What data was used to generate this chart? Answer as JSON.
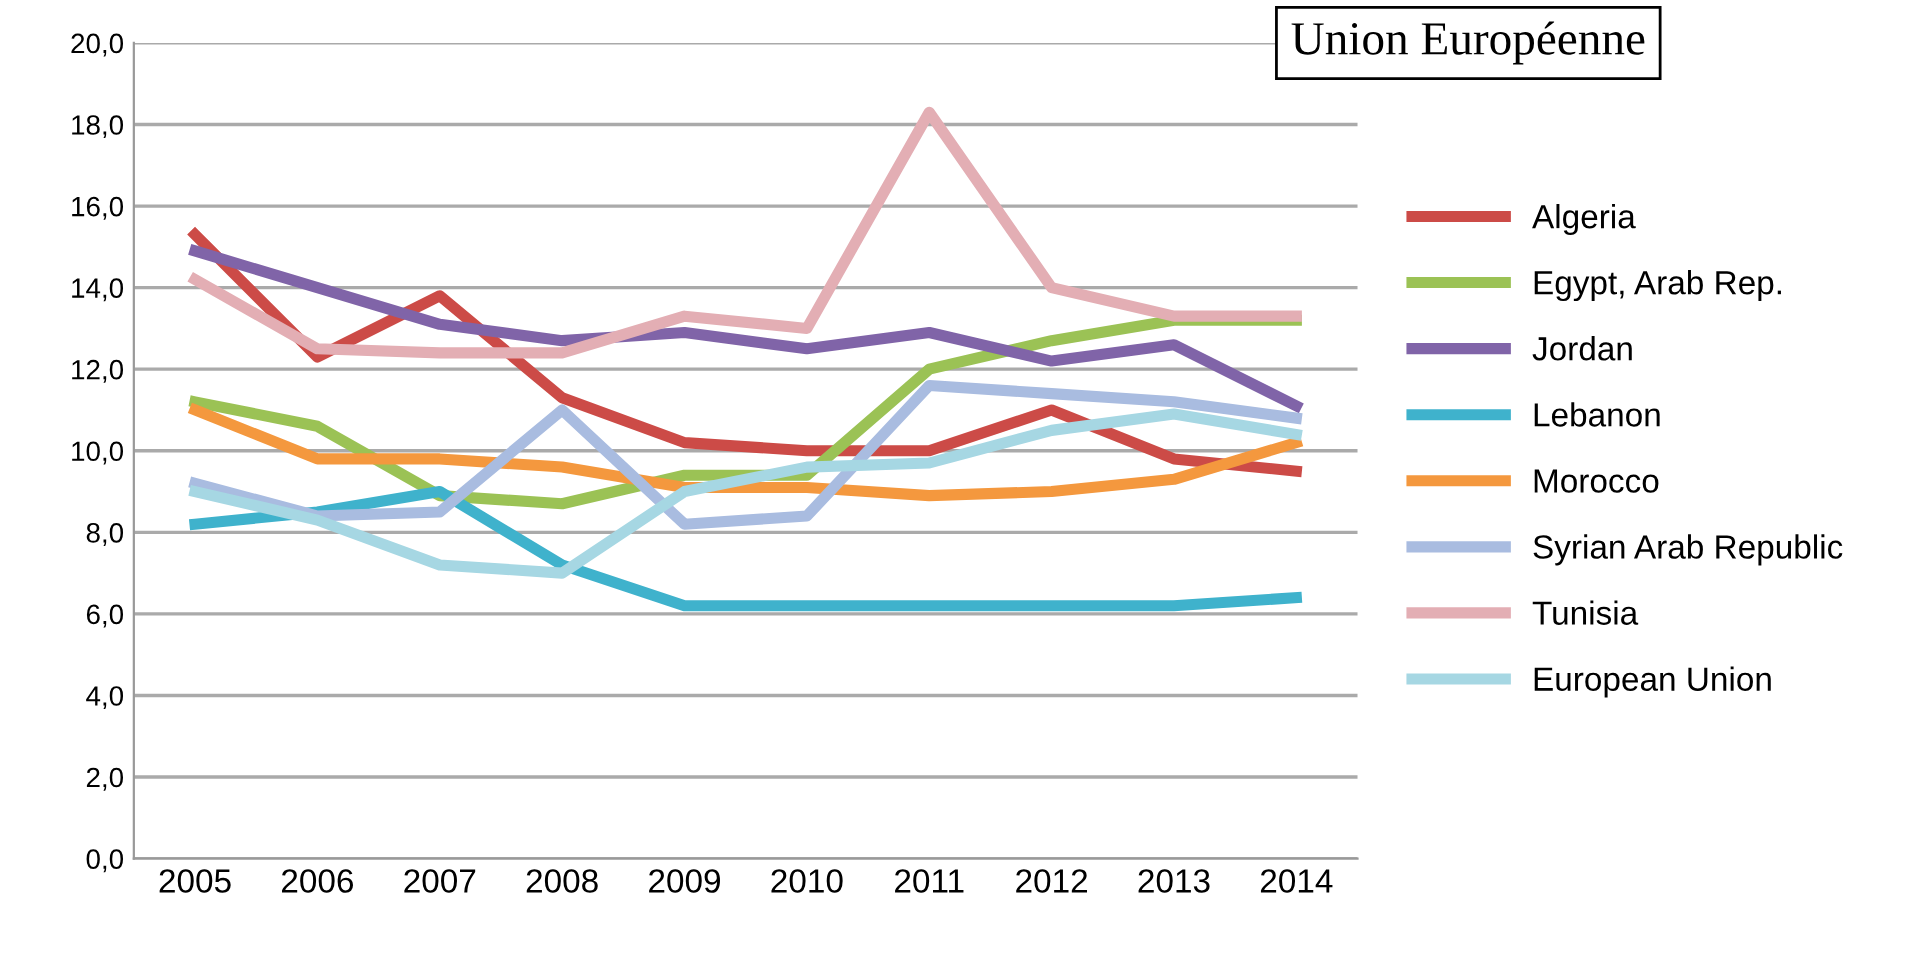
{
  "chart_data": {
    "type": "line",
    "categories": [
      "2005",
      "2006",
      "2007",
      "2008",
      "2009",
      "2010",
      "2011",
      "2012",
      "2013",
      "2014"
    ],
    "series": [
      {
        "name": "Algeria",
        "color": "#cc4b47",
        "values": [
          15.3,
          12.3,
          13.8,
          11.3,
          10.2,
          10.0,
          10.0,
          11.0,
          9.8,
          9.5
        ]
      },
      {
        "name": "Egypt, Arab Rep.",
        "color": "#9bc255",
        "values": [
          11.2,
          10.6,
          8.9,
          8.7,
          9.4,
          9.4,
          12.0,
          12.7,
          13.2,
          13.2
        ]
      },
      {
        "name": "Jordan",
        "color": "#8064a8",
        "values": [
          14.9,
          14.0,
          13.1,
          12.7,
          12.9,
          12.5,
          12.9,
          12.2,
          12.6,
          11.1
        ]
      },
      {
        "name": "Lebanon",
        "color": "#3fb2cc",
        "values": [
          8.2,
          8.5,
          9.0,
          7.2,
          6.2,
          6.2,
          6.2,
          6.2,
          6.2,
          6.4
        ]
      },
      {
        "name": "Morocco",
        "color": "#f4983e",
        "values": [
          11.0,
          9.8,
          9.8,
          9.6,
          9.1,
          9.1,
          8.9,
          9.0,
          9.3,
          10.2
        ]
      },
      {
        "name": "Syrian Arab Republic",
        "color": "#a9bce0",
        "values": [
          9.2,
          8.4,
          8.5,
          11.0,
          8.2,
          8.4,
          11.6,
          11.4,
          11.2,
          10.8
        ]
      },
      {
        "name": "Tunisia",
        "color": "#e3aeb4",
        "values": [
          14.2,
          12.5,
          12.4,
          12.4,
          13.3,
          13.0,
          18.3,
          14.0,
          13.3,
          13.3
        ]
      },
      {
        "name": "European Union",
        "color": "#a6d7e3",
        "values": [
          9.0,
          8.3,
          7.2,
          7.0,
          9.0,
          9.6,
          9.7,
          10.5,
          10.9,
          10.4
        ]
      }
    ],
    "ylim": [
      0,
      20
    ],
    "yticks": [
      {
        "value": 0,
        "label": "0,0"
      },
      {
        "value": 2,
        "label": "2,0"
      },
      {
        "value": 4,
        "label": "4,0"
      },
      {
        "value": 6,
        "label": "6,0"
      },
      {
        "value": 8,
        "label": "8,0"
      },
      {
        "value": 10,
        "label": "10,0"
      },
      {
        "value": 12,
        "label": "12,0"
      },
      {
        "value": 14,
        "label": "14,0"
      },
      {
        "value": 16,
        "label": "16,0"
      },
      {
        "value": 18,
        "label": "18,0"
      },
      {
        "value": 20,
        "label": "20,0"
      }
    ],
    "grid": "y",
    "legend": "right",
    "marker": "none",
    "line_style": "solid",
    "annotations": [
      "Union Européenne"
    ]
  }
}
